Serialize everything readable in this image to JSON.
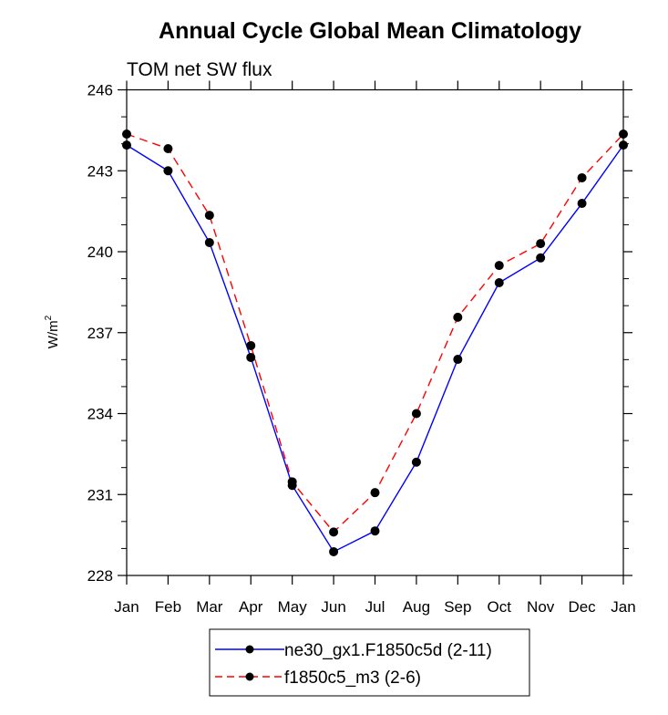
{
  "chart_data": {
    "type": "line",
    "title": "Annual Cycle Global Mean Climatology",
    "subtitle": "TOM net SW flux",
    "xlabel": "",
    "ylabel": "W/m",
    "ylabel_superscript": "2",
    "categories": [
      "Jan",
      "Feb",
      "Mar",
      "Apr",
      "May",
      "Jun",
      "Jul",
      "Aug",
      "Sep",
      "Oct",
      "Nov",
      "Dec",
      "Jan"
    ],
    "ylim": [
      228,
      246
    ],
    "yticks": [
      228,
      231,
      234,
      237,
      240,
      243,
      246
    ],
    "grid": false,
    "legend_position": "bottom-center",
    "series": [
      {
        "name": "ne30_gx1.F1850c5d (2-11)",
        "color": "#0000ff",
        "line_style": "solid",
        "marker": "filled-circle",
        "values": [
          243.95,
          243.0,
          240.34,
          236.08,
          231.34,
          228.88,
          229.65,
          232.2,
          236.01,
          238.85,
          239.77,
          241.79,
          243.95
        ]
      },
      {
        "name": "f1850c5_m3 (2-6)",
        "color": "#ff0000",
        "line_style": "dashed",
        "marker": "filled-circle",
        "values": [
          244.36,
          243.82,
          241.35,
          236.52,
          231.47,
          229.61,
          231.07,
          234.0,
          237.57,
          239.49,
          240.3,
          242.74,
          244.36
        ]
      }
    ]
  }
}
